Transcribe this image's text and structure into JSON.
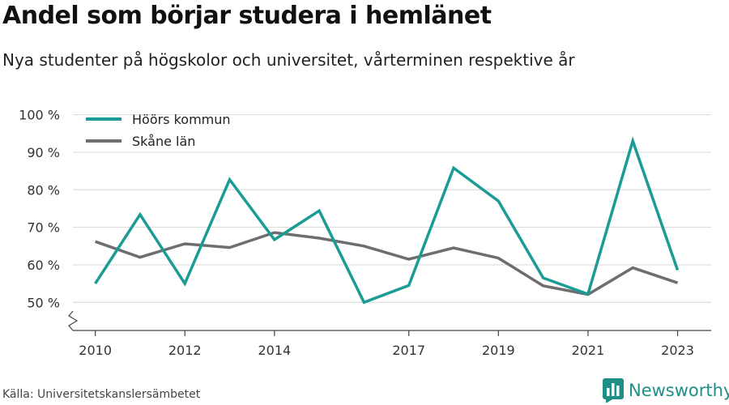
{
  "title": "Andel som börjar studera i hemlänet",
  "subtitle": "Nya studenter på högskolor och universitet, vårterminen respektive år",
  "source": "Källa: Universitetskanslersämbetet",
  "brand": "Newsworthy",
  "colors": {
    "hoor": "#1a9c94",
    "skane": "#6e6d72",
    "grid": "#dddddd",
    "axis": "#444444",
    "brand": "#1f8f86"
  },
  "chart_data": {
    "type": "line",
    "x": [
      2010,
      2011,
      2012,
      2013,
      2014,
      2015,
      2016,
      2017,
      2018,
      2019,
      2020,
      2021,
      2022,
      2023
    ],
    "x_tick_labels": [
      "2010",
      "2012",
      "2014",
      "2017",
      "2019",
      "2021",
      "2023"
    ],
    "x_ticks": [
      2010,
      2012,
      2014,
      2017,
      2019,
      2021,
      2023
    ],
    "y_tick_labels": [
      "50 %",
      "60 %",
      "70 %",
      "80 %",
      "90 %",
      "100 %"
    ],
    "y_ticks": [
      50,
      60,
      70,
      80,
      90,
      100
    ],
    "ylim": [
      42.5,
      102.5
    ],
    "xlim": [
      2009.5,
      2023.75
    ],
    "grid": true,
    "y_axis_break": true,
    "legend_position": "top-left",
    "series": [
      {
        "name": "Höörs kommun",
        "color": "#1a9c94",
        "values": [
          55.0,
          73.4,
          55.0,
          82.7,
          66.7,
          74.4,
          50.0,
          54.5,
          85.8,
          77.0,
          56.5,
          52.2,
          93.0,
          58.6
        ]
      },
      {
        "name": "Skåne län",
        "color": "#6e6d72",
        "values": [
          66.2,
          62.0,
          65.6,
          64.6,
          68.6,
          67.1,
          65.0,
          61.5,
          64.5,
          61.8,
          54.4,
          52.1,
          59.2,
          55.2
        ]
      }
    ]
  }
}
